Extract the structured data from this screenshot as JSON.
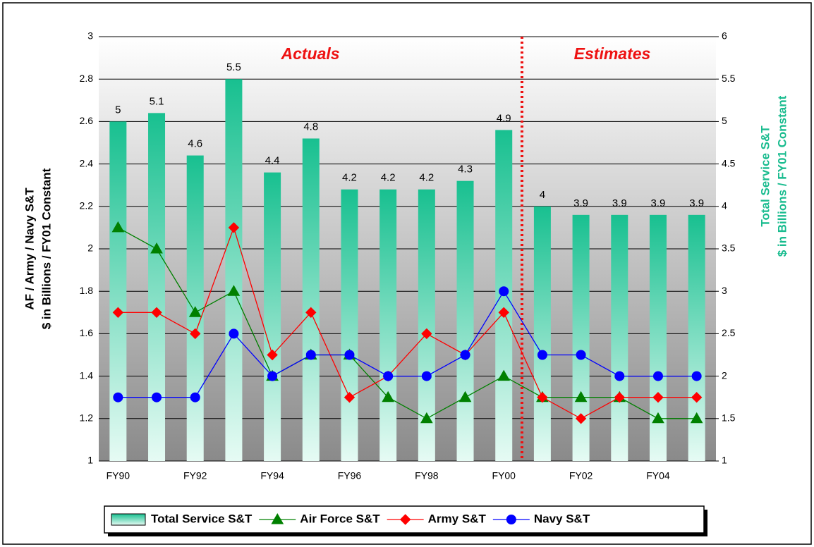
{
  "chart_data": {
    "type": "bar",
    "categories": [
      "FY90",
      null,
      "FY92",
      null,
      "FY94",
      null,
      "FY96",
      null,
      "FY98",
      null,
      "FY00",
      null,
      "FY02",
      null,
      "FY04",
      null
    ],
    "series": [
      {
        "name": "Total Service S&T",
        "type": "bar",
        "axis": "y2",
        "color": "#1abc8f",
        "values": [
          5,
          5.1,
          4.6,
          5.5,
          4.4,
          4.8,
          4.2,
          4.2,
          4.2,
          4.3,
          4.9,
          4,
          3.9,
          3.9,
          3.9,
          3.9
        ]
      },
      {
        "name": "Air Force S&T",
        "type": "line",
        "marker": "triangle",
        "color": "#008000",
        "values": [
          2.1,
          2.0,
          1.7,
          1.8,
          1.4,
          1.5,
          1.5,
          1.3,
          1.2,
          1.3,
          1.4,
          1.3,
          1.3,
          1.3,
          1.2,
          1.2
        ]
      },
      {
        "name": "Army S&T",
        "type": "line",
        "marker": "diamond",
        "color": "#ff0000",
        "values": [
          1.7,
          1.7,
          1.6,
          2.1,
          1.5,
          1.7,
          1.3,
          1.4,
          1.6,
          1.5,
          1.7,
          1.3,
          1.2,
          1.3,
          1.3,
          1.3
        ]
      },
      {
        "name": "Navy S&T",
        "type": "line",
        "marker": "circle",
        "color": "#0000ff",
        "values": [
          1.3,
          1.3,
          1.3,
          1.6,
          1.4,
          1.5,
          1.5,
          1.4,
          1.4,
          1.5,
          1.8,
          1.5,
          1.5,
          1.4,
          1.4,
          1.4
        ]
      }
    ],
    "annotations": [
      "Actuals",
      "Estimates"
    ],
    "y_label": [
      "AF / Army / Navy S&T",
      "$ in Billions / FY01 Constant"
    ],
    "y2_label": [
      "Total Service S&T",
      "$ in Billions / FY01 Constant"
    ],
    "y2_label_color": "#1abc8f",
    "ylim": [
      1,
      3
    ],
    "yticks": [
      1,
      1.2,
      1.4,
      1.6,
      1.8,
      2,
      2.2,
      2.4,
      2.6,
      2.8,
      3
    ],
    "y2lim": [
      1,
      6
    ],
    "y2ticks": [
      1,
      1.5,
      2,
      2.5,
      3,
      3.5,
      4,
      4.5,
      5,
      5.5,
      6
    ],
    "grid": true
  }
}
